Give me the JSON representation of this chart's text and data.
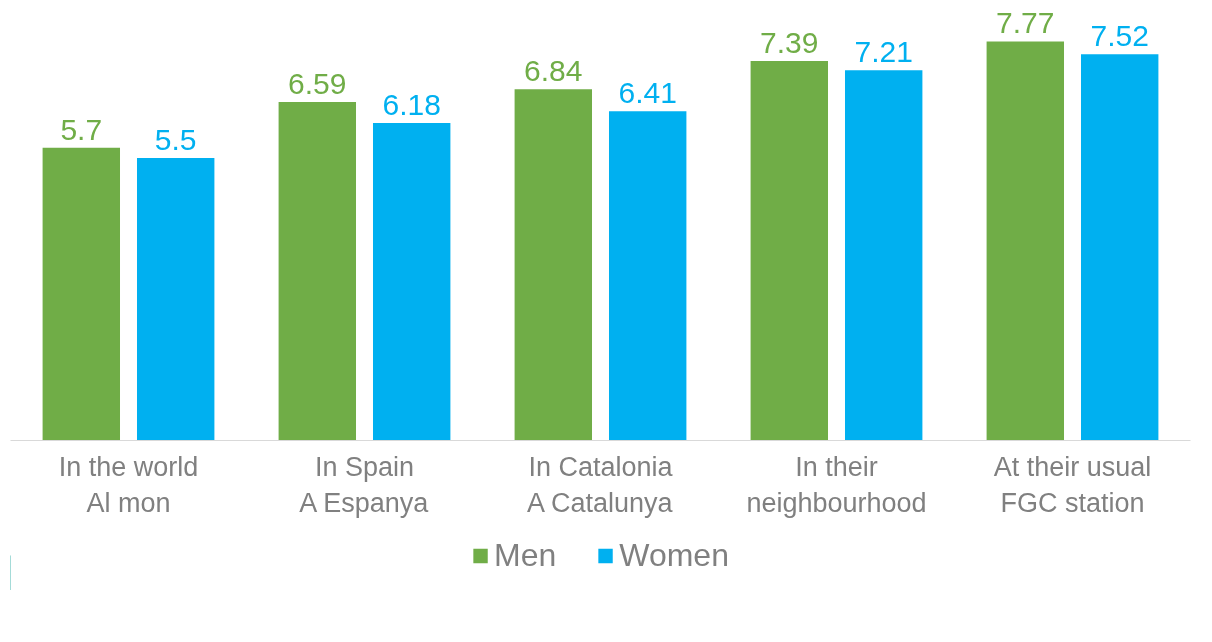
{
  "chart_data": {
    "type": "bar",
    "categories": [
      "In the world\nAl mon",
      "In Spain\nA Espanya",
      "In Catalonia\nA Catalunya",
      "In their\nneighbourhood",
      "At their usual\nFGC station"
    ],
    "series": [
      {
        "name": "Men",
        "color": "#70ad47",
        "values": [
          5.7,
          6.59,
          6.84,
          7.39,
          7.77
        ]
      },
      {
        "name": "Women",
        "color": "#00b0f0",
        "values": [
          5.5,
          6.18,
          6.41,
          7.21,
          7.52
        ]
      }
    ],
    "data_labels": true,
    "legend": "bottom",
    "grid": false,
    "tick_labels": "x"
  }
}
